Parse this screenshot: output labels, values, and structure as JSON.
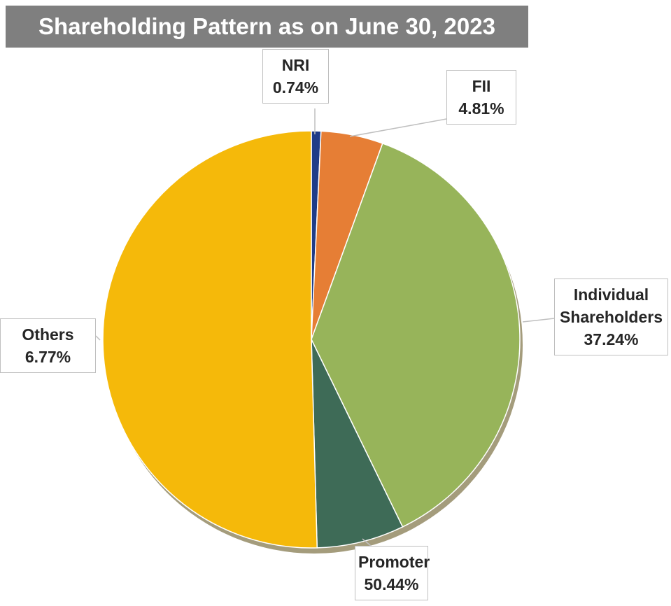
{
  "chart_data": {
    "type": "pie",
    "title": "Shareholding Pattern as on June 30, 2023",
    "categories": [
      "NRI",
      "FII",
      "Individual Shareholders",
      "Others",
      "Promoter"
    ],
    "values": [
      0.74,
      4.81,
      37.24,
      6.77,
      50.44
    ],
    "value_labels": [
      "0.74%",
      "4.81%",
      "37.24%",
      "6.77%",
      "50.44%"
    ],
    "colors": [
      "#1f3c88",
      "#e67e35",
      "#97b45a",
      "#3e6b57",
      "#f5b90a"
    ]
  }
}
